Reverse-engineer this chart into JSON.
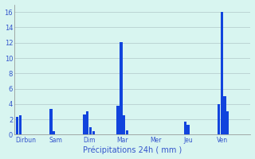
{
  "xlabel": "Précipitations 24h ( mm )",
  "background_color": "#d8f5f0",
  "bar_color": "#1144dd",
  "grid_color": "#b0c8c8",
  "text_color": "#3355cc",
  "ylim": [
    0,
    17
  ],
  "yticks": [
    0,
    2,
    4,
    6,
    8,
    10,
    12,
    14,
    16
  ],
  "days": [
    "Dirbun",
    "Sam",
    "Dim",
    "Mar",
    "Mer",
    "Jeu",
    "Ven"
  ],
  "bars": [
    {
      "day": "Dirbun",
      "values": [
        2.3,
        2.5
      ]
    },
    {
      "day": "Sam",
      "values": [
        3.4,
        0.5
      ]
    },
    {
      "day": "Dim",
      "values": [
        2.6,
        3.1,
        1.0,
        0.5
      ]
    },
    {
      "day": "Mar",
      "values": [
        3.8,
        12.1,
        2.5,
        0.6
      ]
    },
    {
      "day": "Mer",
      "values": [
        0.0
      ]
    },
    {
      "day": "Jeu",
      "values": [
        1.7,
        1.3
      ]
    },
    {
      "day": "Ven",
      "values": [
        4.0,
        16.0,
        5.0,
        3.1
      ]
    }
  ],
  "figsize": [
    3.2,
    2.0
  ],
  "dpi": 100
}
